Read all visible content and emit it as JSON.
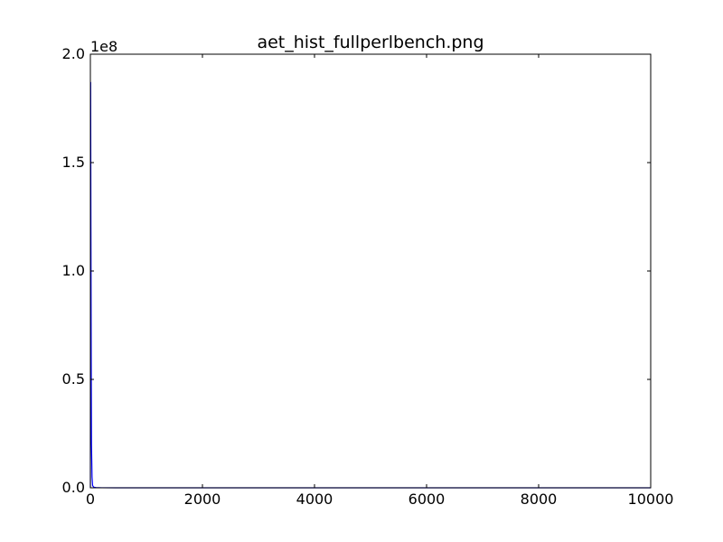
{
  "chart_data": {
    "type": "line",
    "title": "aet_hist_fullperlbench.png",
    "xlabel": "",
    "ylabel": "",
    "xlim": [
      0,
      10000
    ],
    "ylim": [
      0,
      200000000
    ],
    "grid": false,
    "x_ticks": [
      {
        "value": 0,
        "label": "0"
      },
      {
        "value": 2000,
        "label": "2000"
      },
      {
        "value": 4000,
        "label": "4000"
      },
      {
        "value": 6000,
        "label": "6000"
      },
      {
        "value": 8000,
        "label": "8000"
      },
      {
        "value": 10000,
        "label": "10000"
      }
    ],
    "y_ticks": [
      {
        "value": 0,
        "label": "0.0"
      },
      {
        "value": 50000000,
        "label": "0.5"
      },
      {
        "value": 100000000,
        "label": "1.0"
      },
      {
        "value": 150000000,
        "label": "1.5"
      },
      {
        "value": 200000000,
        "label": "2.0"
      }
    ],
    "y_offset_label": "1e8",
    "series": [
      {
        "color": "#0000ff",
        "x": [
          0,
          5,
          10,
          15,
          20,
          30,
          40,
          60,
          100,
          200,
          500,
          1000,
          2000,
          4000,
          6000,
          8000,
          10000
        ],
        "y": [
          0,
          187000000,
          120000000,
          60000000,
          20000000,
          5000000,
          1000000,
          300000,
          100000,
          30000,
          10000,
          5000,
          2000,
          1000,
          500,
          200,
          100
        ]
      }
    ]
  }
}
